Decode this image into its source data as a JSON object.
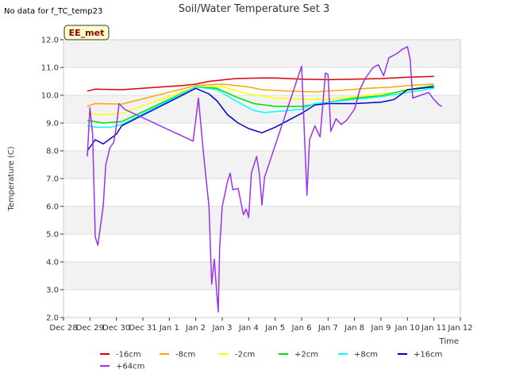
{
  "chart_data": {
    "type": "line",
    "title": "Soil/Water Temperature Set 3",
    "xlabel": "Time",
    "ylabel": "Temperature (C)",
    "no_data_note": "No data for f_TC_temp23",
    "site_badge": "EE_met",
    "ylim": [
      2.0,
      12.0
    ],
    "yticks": [
      "2.0",
      "3.0",
      "4.0",
      "5.0",
      "6.0",
      "7.0",
      "8.0",
      "9.0",
      "10.0",
      "11.0",
      "12.0"
    ],
    "xlim": [
      0,
      15
    ],
    "xticks": [
      "Dec 28",
      "Dec 29",
      "Dec 30",
      "Dec 31",
      "Jan 1",
      "Jan 2",
      "Jan 3",
      "Jan 4",
      "Jan 5",
      "Jan 6",
      "Jan 7",
      "Jan 8",
      "Jan 9",
      "Jan 10",
      "Jan 11",
      "Jan 12"
    ],
    "legend_position": "bottom",
    "grid": true,
    "series": [
      {
        "name": "-16cm",
        "color": "#dd0000",
        "points": [
          [
            0.9,
            10.15
          ],
          [
            1.2,
            10.22
          ],
          [
            2.2,
            10.2
          ],
          [
            4.5,
            10.35
          ],
          [
            5.0,
            10.4
          ],
          [
            5.5,
            10.5
          ],
          [
            6.5,
            10.6
          ],
          [
            7.5,
            10.62
          ],
          [
            8.0,
            10.62
          ],
          [
            9.0,
            10.58
          ],
          [
            10.0,
            10.56
          ],
          [
            11.0,
            10.58
          ],
          [
            12.0,
            10.6
          ],
          [
            13.0,
            10.65
          ],
          [
            14.0,
            10.68
          ]
        ]
      },
      {
        "name": "-8cm",
        "color": "#ffa500",
        "points": [
          [
            0.9,
            9.6
          ],
          [
            1.2,
            9.7
          ],
          [
            2.2,
            9.68
          ],
          [
            5.0,
            10.35
          ],
          [
            6.0,
            10.4
          ],
          [
            7.0,
            10.3
          ],
          [
            7.5,
            10.2
          ],
          [
            8.5,
            10.15
          ],
          [
            9.5,
            10.12
          ],
          [
            10.5,
            10.18
          ],
          [
            11.5,
            10.25
          ],
          [
            12.5,
            10.3
          ],
          [
            13.0,
            10.35
          ],
          [
            14.0,
            10.4
          ]
        ]
      },
      {
        "name": "-2cm",
        "color": "#ffff00",
        "points": [
          [
            0.9,
            9.35
          ],
          [
            1.5,
            9.3
          ],
          [
            2.2,
            9.35
          ],
          [
            5.0,
            10.3
          ],
          [
            6.0,
            10.3
          ],
          [
            7.0,
            10.05
          ],
          [
            8.0,
            9.9
          ],
          [
            9.0,
            9.85
          ],
          [
            10.0,
            9.85
          ],
          [
            11.0,
            9.95
          ],
          [
            12.0,
            10.05
          ],
          [
            13.0,
            10.15
          ],
          [
            14.0,
            10.35
          ]
        ]
      },
      {
        "name": "+2cm",
        "color": "#00dd00",
        "points": [
          [
            0.9,
            9.1
          ],
          [
            1.5,
            9.0
          ],
          [
            2.2,
            9.05
          ],
          [
            5.0,
            10.3
          ],
          [
            5.8,
            10.25
          ],
          [
            6.5,
            9.95
          ],
          [
            7.2,
            9.7
          ],
          [
            8.0,
            9.6
          ],
          [
            9.0,
            9.6
          ],
          [
            10.0,
            9.75
          ],
          [
            11.0,
            9.9
          ],
          [
            12.0,
            9.98
          ],
          [
            13.0,
            10.2
          ],
          [
            14.0,
            10.35
          ]
        ]
      },
      {
        "name": "+8cm",
        "color": "#00ffff",
        "points": [
          [
            0.9,
            8.9
          ],
          [
            1.2,
            8.85
          ],
          [
            1.8,
            8.85
          ],
          [
            2.2,
            8.95
          ],
          [
            5.0,
            10.3
          ],
          [
            5.8,
            10.2
          ],
          [
            6.5,
            9.8
          ],
          [
            7.2,
            9.45
          ],
          [
            7.6,
            9.38
          ],
          [
            8.5,
            9.45
          ],
          [
            9.0,
            9.5
          ],
          [
            9.5,
            9.7
          ],
          [
            10.0,
            9.75
          ],
          [
            11.0,
            9.85
          ],
          [
            12.0,
            9.95
          ],
          [
            13.0,
            10.1
          ],
          [
            14.0,
            10.25
          ]
        ]
      },
      {
        "name": "+16cm",
        "color": "#0000cc",
        "points": [
          [
            0.9,
            8.0
          ],
          [
            1.2,
            8.4
          ],
          [
            1.5,
            8.25
          ],
          [
            2.0,
            8.6
          ],
          [
            2.2,
            8.9
          ],
          [
            5.0,
            10.25
          ],
          [
            5.5,
            10.05
          ],
          [
            5.8,
            9.8
          ],
          [
            6.2,
            9.3
          ],
          [
            6.6,
            9.0
          ],
          [
            7.0,
            8.8
          ],
          [
            7.5,
            8.65
          ],
          [
            8.0,
            8.85
          ],
          [
            9.0,
            9.35
          ],
          [
            9.5,
            9.65
          ],
          [
            10.0,
            9.7
          ],
          [
            10.5,
            9.7
          ],
          [
            11.0,
            9.7
          ],
          [
            12.0,
            9.75
          ],
          [
            12.5,
            9.85
          ],
          [
            13.0,
            10.2
          ],
          [
            14.0,
            10.3
          ]
        ]
      },
      {
        "name": "+64cm",
        "color": "#9933ee",
        "points": [
          [
            0.9,
            7.8
          ],
          [
            1.0,
            9.55
          ],
          [
            1.1,
            8.6
          ],
          [
            1.2,
            4.9
          ],
          [
            1.3,
            4.6
          ],
          [
            1.5,
            6.0
          ],
          [
            1.6,
            7.5
          ],
          [
            1.75,
            8.1
          ],
          [
            1.9,
            8.3
          ],
          [
            2.0,
            8.9
          ],
          [
            2.1,
            9.7
          ],
          [
            2.3,
            9.5
          ],
          [
            4.9,
            8.35
          ],
          [
            5.1,
            9.9
          ],
          [
            5.3,
            7.8
          ],
          [
            5.5,
            6.0
          ],
          [
            5.6,
            3.2
          ],
          [
            5.7,
            4.1
          ],
          [
            5.8,
            2.8
          ],
          [
            5.85,
            2.2
          ],
          [
            5.9,
            4.5
          ],
          [
            6.0,
            6.0
          ],
          [
            6.2,
            6.9
          ],
          [
            6.3,
            7.2
          ],
          [
            6.4,
            6.6
          ],
          [
            6.6,
            6.65
          ],
          [
            6.8,
            5.7
          ],
          [
            6.9,
            5.9
          ],
          [
            7.0,
            5.6
          ],
          [
            7.1,
            7.2
          ],
          [
            7.3,
            7.8
          ],
          [
            7.4,
            7.2
          ],
          [
            7.5,
            6.05
          ],
          [
            7.6,
            7.05
          ],
          [
            9.0,
            11.05
          ],
          [
            9.2,
            6.4
          ],
          [
            9.3,
            8.4
          ],
          [
            9.5,
            8.9
          ],
          [
            9.7,
            8.5
          ],
          [
            9.9,
            10.8
          ],
          [
            10.0,
            10.75
          ],
          [
            10.1,
            8.7
          ],
          [
            10.3,
            9.15
          ],
          [
            10.5,
            8.95
          ],
          [
            10.7,
            9.1
          ],
          [
            11.0,
            9.5
          ],
          [
            11.2,
            10.2
          ],
          [
            11.4,
            10.6
          ],
          [
            11.7,
            11.0
          ],
          [
            11.9,
            11.1
          ],
          [
            12.1,
            10.7
          ],
          [
            12.3,
            11.35
          ],
          [
            12.6,
            11.5
          ],
          [
            12.8,
            11.65
          ],
          [
            13.0,
            11.75
          ],
          [
            13.1,
            11.3
          ],
          [
            13.2,
            9.9
          ],
          [
            13.8,
            10.1
          ],
          [
            14.0,
            9.85
          ],
          [
            14.2,
            9.65
          ],
          [
            14.3,
            9.6
          ]
        ]
      }
    ]
  }
}
